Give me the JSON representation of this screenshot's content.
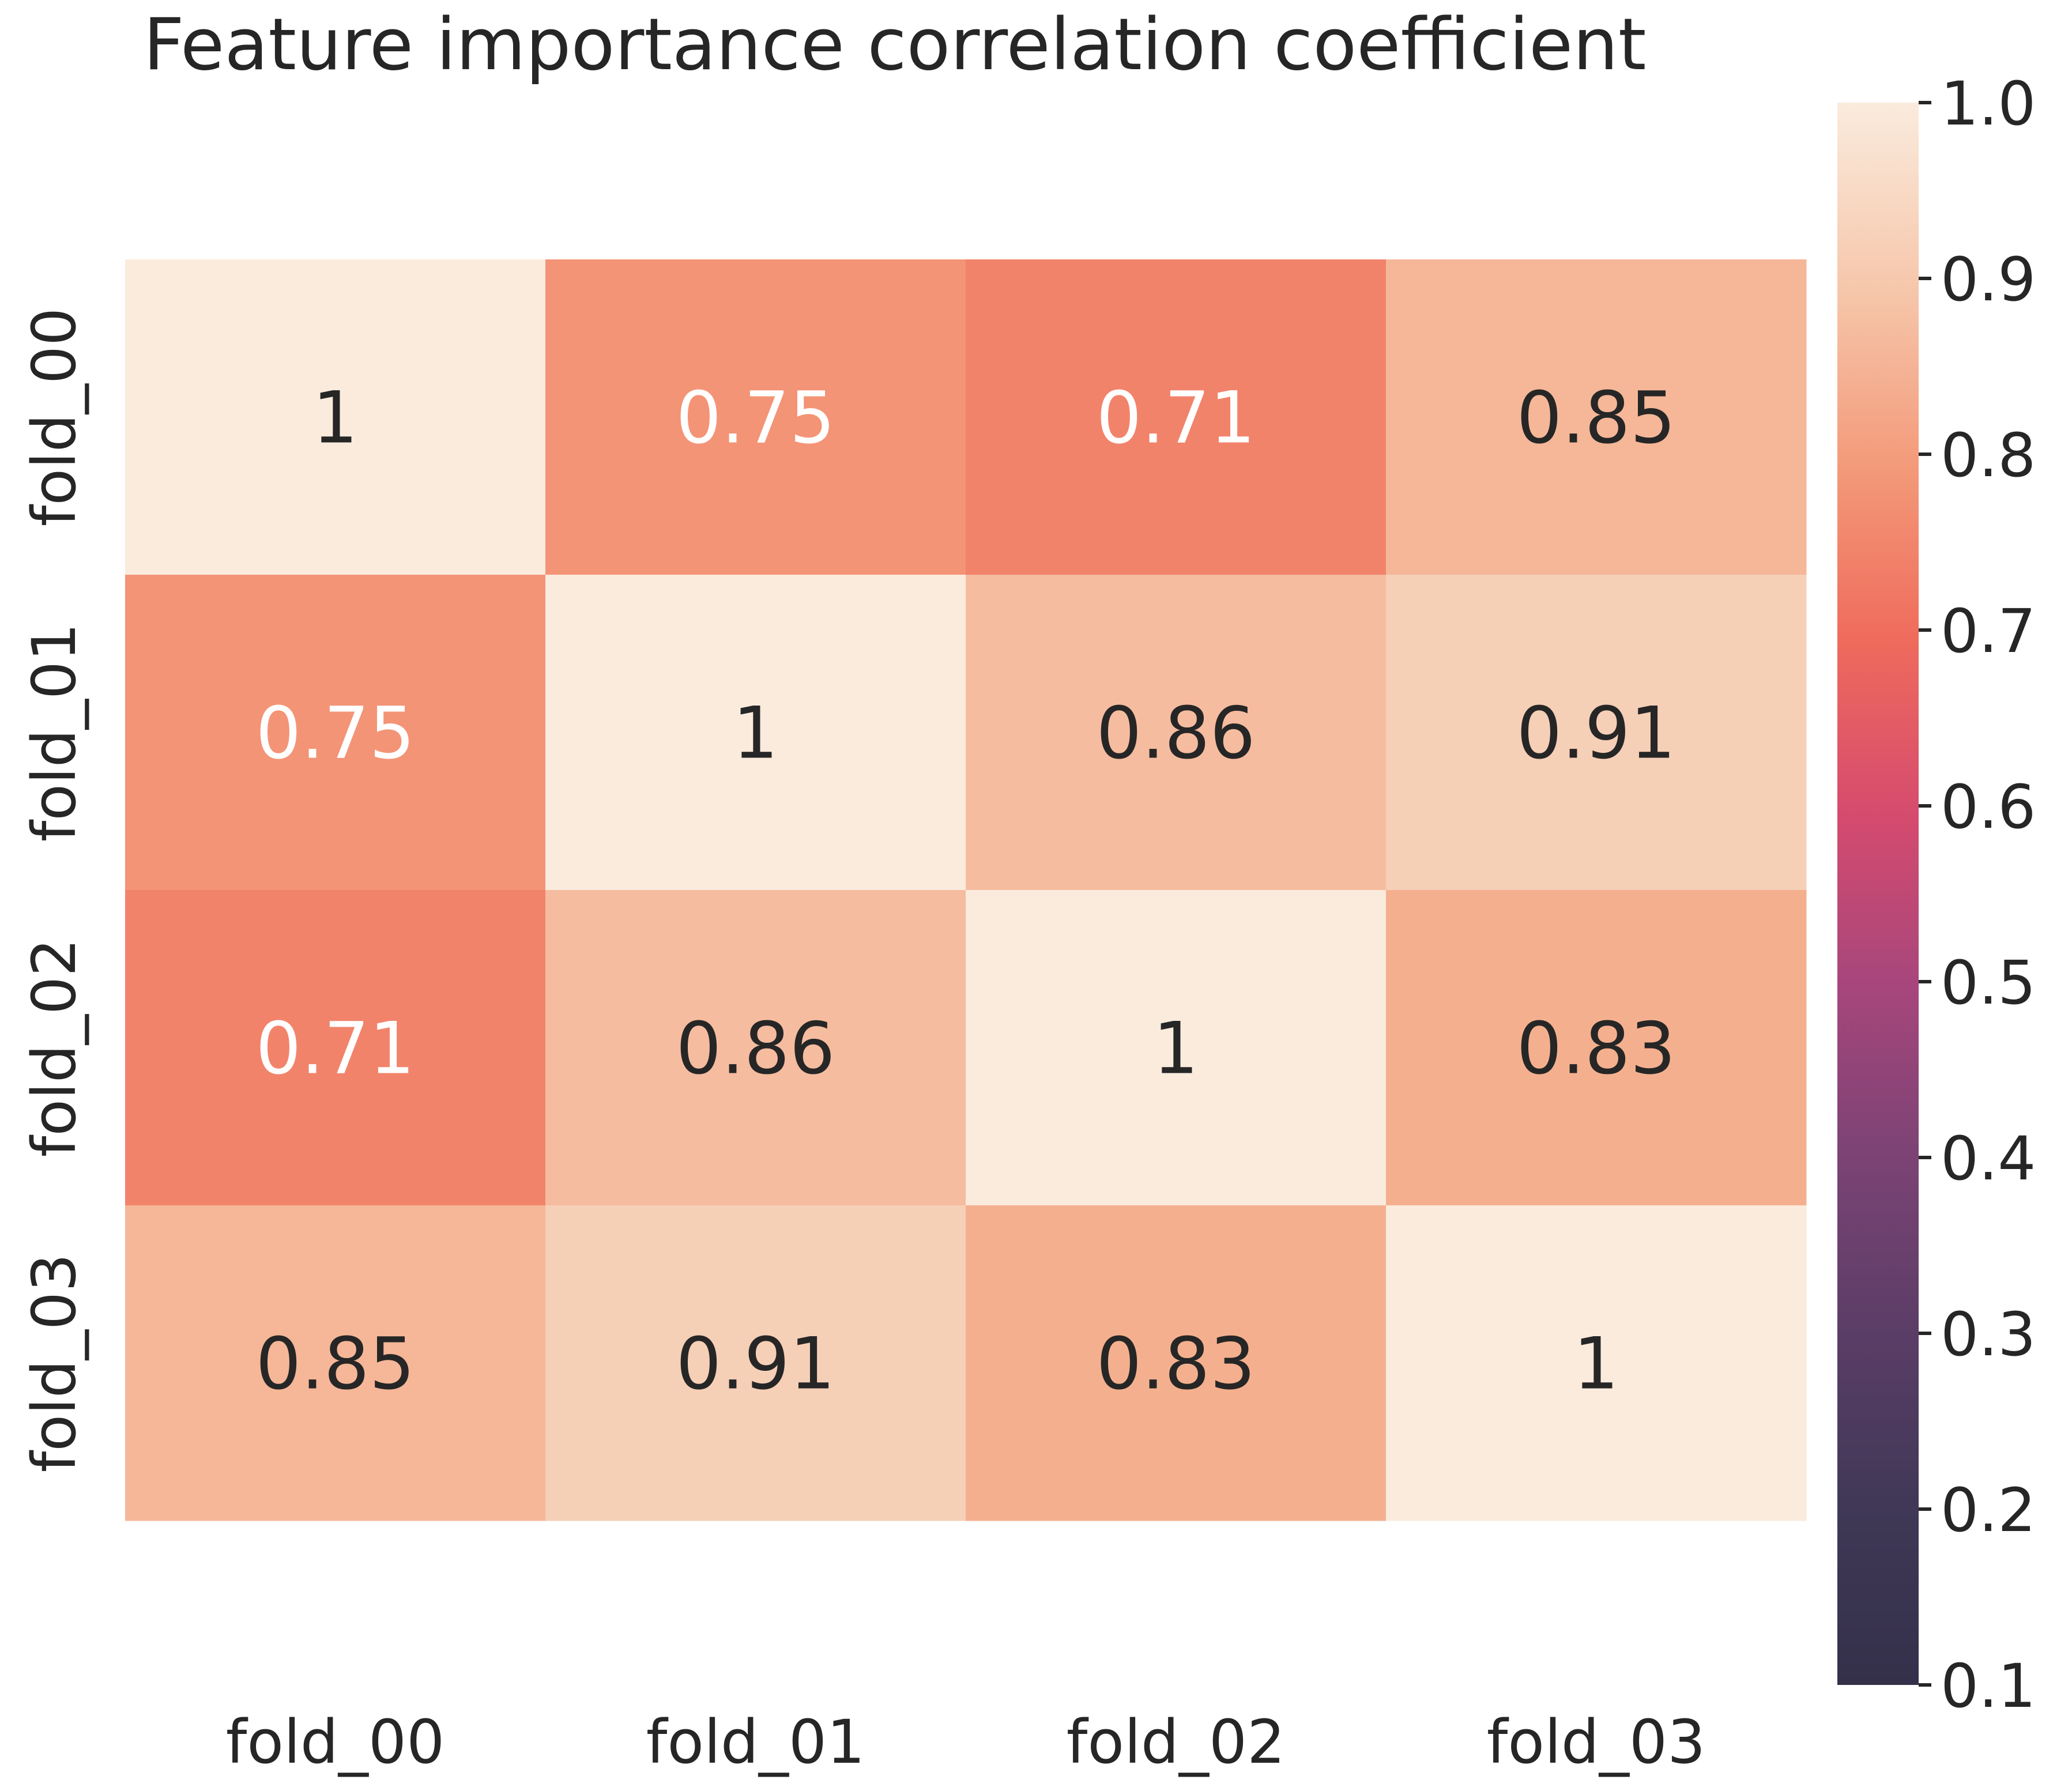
{
  "chart_data": {
    "type": "heatmap",
    "title": "Feature importance correlation coefficient",
    "rows": [
      "fold_00",
      "fold_01",
      "fold_02",
      "fold_03"
    ],
    "columns": [
      "fold_00",
      "fold_01",
      "fold_02",
      "fold_03"
    ],
    "values": [
      [
        1,
        0.75,
        0.71,
        0.85
      ],
      [
        0.75,
        1,
        0.86,
        0.91
      ],
      [
        0.71,
        0.86,
        1,
        0.83
      ],
      [
        0.85,
        0.91,
        0.83,
        1
      ]
    ],
    "cell_labels": [
      [
        "1",
        "0.75",
        "0.71",
        "0.85"
      ],
      [
        "0.75",
        "1",
        "0.86",
        "0.91"
      ],
      [
        "0.71",
        "0.86",
        "1",
        "0.83"
      ],
      [
        "0.85",
        "0.91",
        "0.83",
        "1"
      ]
    ],
    "colorbar": {
      "range": [
        0.1,
        1.0
      ],
      "ticks": [
        "1.0",
        "0.9",
        "0.8",
        "0.7",
        "0.6",
        "0.5",
        "0.4",
        "0.3",
        "0.2",
        "0.1"
      ],
      "colormap": "rocket"
    },
    "colors": {
      "cell_1.00": "#faebdd",
      "cell_0.91": "#f6cfb7",
      "cell_0.86": "#f6bc9f",
      "cell_0.85": "#f5b798",
      "cell_0.83": "#f4b08e",
      "cell_0.75": "#f39476",
      "cell_0.71": "#f2836b",
      "text_dark": "#262626",
      "text_light": "#ffffff"
    }
  }
}
